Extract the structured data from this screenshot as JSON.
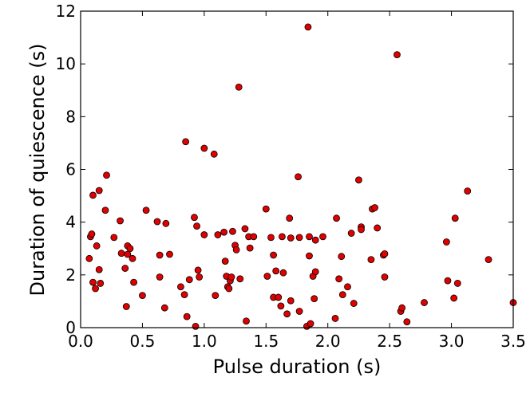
{
  "chart_data": {
    "type": "scatter",
    "title": "",
    "xlabel": "Pulse duration (s)",
    "ylabel": "Duration of quiescence (s)",
    "xlim": [
      0.0,
      3.5
    ],
    "ylim": [
      0,
      12
    ],
    "xticks": [
      "0.0",
      "0.5",
      "1.0",
      "1.5",
      "2.0",
      "2.5",
      "3.0",
      "3.5"
    ],
    "yticks": [
      "0",
      "2",
      "4",
      "6",
      "8",
      "10",
      "12"
    ],
    "grid": false,
    "legend": "none",
    "marker_color": "#e00000",
    "marker_edge_color": "#000000",
    "series": [
      {
        "points": [
          [
            0.07,
            2.62
          ],
          [
            0.08,
            3.45
          ],
          [
            0.09,
            3.55
          ],
          [
            0.1,
            1.72
          ],
          [
            0.1,
            5.02
          ],
          [
            0.12,
            1.48
          ],
          [
            0.13,
            3.1
          ],
          [
            0.15,
            5.2
          ],
          [
            0.15,
            2.2
          ],
          [
            0.16,
            1.68
          ],
          [
            0.2,
            4.45
          ],
          [
            0.21,
            5.78
          ],
          [
            0.27,
            3.42
          ],
          [
            0.32,
            4.05
          ],
          [
            0.33,
            2.82
          ],
          [
            0.36,
            2.25
          ],
          [
            0.37,
            0.8
          ],
          [
            0.38,
            2.78
          ],
          [
            0.38,
            3.1
          ],
          [
            0.4,
            3.0
          ],
          [
            0.42,
            2.62
          ],
          [
            0.43,
            1.72
          ],
          [
            0.5,
            1.22
          ],
          [
            0.53,
            4.45
          ],
          [
            0.62,
            4.02
          ],
          [
            0.64,
            1.92
          ],
          [
            0.64,
            2.75
          ],
          [
            0.68,
            0.75
          ],
          [
            0.69,
            3.95
          ],
          [
            0.72,
            2.78
          ],
          [
            0.81,
            1.55
          ],
          [
            0.84,
            1.25
          ],
          [
            0.85,
            7.05
          ],
          [
            0.86,
            0.42
          ],
          [
            0.88,
            1.82
          ],
          [
            0.92,
            4.18
          ],
          [
            0.93,
            0.05
          ],
          [
            0.94,
            3.85
          ],
          [
            0.95,
            2.18
          ],
          [
            0.96,
            1.92
          ],
          [
            1.0,
            6.8
          ],
          [
            1.0,
            3.52
          ],
          [
            1.08,
            6.58
          ],
          [
            1.09,
            1.22
          ],
          [
            1.11,
            3.52
          ],
          [
            1.16,
            3.62
          ],
          [
            1.17,
            2.52
          ],
          [
            1.18,
            1.95
          ],
          [
            1.19,
            1.55
          ],
          [
            1.2,
            1.48
          ],
          [
            1.21,
            1.78
          ],
          [
            1.22,
            1.92
          ],
          [
            1.23,
            3.65
          ],
          [
            1.25,
            3.12
          ],
          [
            1.26,
            2.95
          ],
          [
            1.28,
            9.12
          ],
          [
            1.29,
            1.85
          ],
          [
            1.33,
            3.75
          ],
          [
            1.34,
            0.25
          ],
          [
            1.36,
            3.45
          ],
          [
            1.37,
            3.02
          ],
          [
            1.4,
            3.45
          ],
          [
            1.5,
            4.5
          ],
          [
            1.51,
            1.95
          ],
          [
            1.54,
            3.42
          ],
          [
            1.56,
            2.75
          ],
          [
            1.56,
            1.15
          ],
          [
            1.58,
            2.15
          ],
          [
            1.6,
            1.15
          ],
          [
            1.62,
            0.82
          ],
          [
            1.63,
            3.45
          ],
          [
            1.64,
            2.08
          ],
          [
            1.67,
            0.52
          ],
          [
            1.69,
            4.15
          ],
          [
            1.7,
            3.4
          ],
          [
            1.7,
            1.02
          ],
          [
            1.76,
            5.72
          ],
          [
            1.77,
            3.42
          ],
          [
            1.77,
            0.62
          ],
          [
            1.83,
            0.05
          ],
          [
            1.84,
            11.4
          ],
          [
            1.85,
            3.45
          ],
          [
            1.85,
            2.72
          ],
          [
            1.86,
            0.15
          ],
          [
            1.88,
            1.95
          ],
          [
            1.89,
            1.1
          ],
          [
            1.9,
            3.32
          ],
          [
            1.9,
            2.12
          ],
          [
            1.96,
            3.45
          ],
          [
            2.06,
            0.35
          ],
          [
            2.07,
            4.15
          ],
          [
            2.09,
            1.85
          ],
          [
            2.11,
            2.7
          ],
          [
            2.12,
            1.25
          ],
          [
            2.16,
            1.55
          ],
          [
            2.19,
            3.58
          ],
          [
            2.21,
            0.92
          ],
          [
            2.25,
            5.6
          ],
          [
            2.27,
            3.82
          ],
          [
            2.27,
            3.72
          ],
          [
            2.35,
            2.58
          ],
          [
            2.36,
            4.5
          ],
          [
            2.38,
            4.55
          ],
          [
            2.4,
            3.78
          ],
          [
            2.45,
            2.75
          ],
          [
            2.46,
            2.8
          ],
          [
            2.46,
            1.92
          ],
          [
            2.56,
            10.35
          ],
          [
            2.59,
            0.62
          ],
          [
            2.6,
            0.75
          ],
          [
            2.64,
            0.22
          ],
          [
            2.78,
            0.95
          ],
          [
            2.96,
            3.25
          ],
          [
            2.97,
            1.78
          ],
          [
            3.02,
            1.12
          ],
          [
            3.03,
            4.15
          ],
          [
            3.05,
            1.68
          ],
          [
            3.13,
            5.18
          ],
          [
            3.3,
            2.58
          ],
          [
            3.5,
            0.95
          ]
        ]
      }
    ]
  }
}
